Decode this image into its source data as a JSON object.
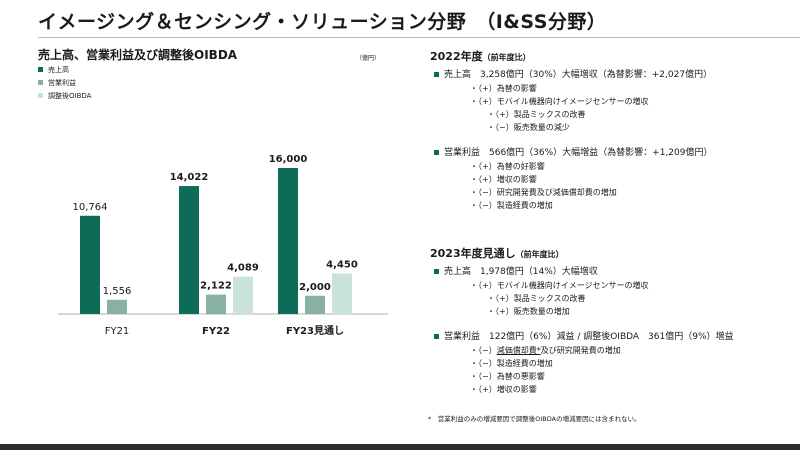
{
  "slide": {
    "title": "イメージング＆センシング・ソリューション分野　（I&SS分野）",
    "footnote": "*　営業利益のみの増減要因で調整後OIBDAの増減要因には含まれない。"
  },
  "colors": {
    "sales": "#0d6b57",
    "op_income": "#88b0a5",
    "oibda": "#c9e2dc",
    "bullet": "#0d6b57"
  },
  "chart_data": {
    "type": "bar",
    "title": "売上高、営業利益及び調整後OIBDA",
    "unit": "（億円）",
    "categories": [
      "FY21",
      "FY22",
      "FY23見通し"
    ],
    "categories_bold": [
      false,
      true,
      true
    ],
    "series": [
      {
        "name": "売上高",
        "values": [
          10764,
          14022,
          16000
        ],
        "labels": [
          "10,764",
          "14,022",
          "16,000"
        ],
        "label_bold": [
          false,
          true,
          true
        ]
      },
      {
        "name": "営業利益",
        "values": [
          1556,
          2122,
          2000
        ],
        "labels": [
          "1,556",
          "2,122",
          "2,000"
        ],
        "label_bold": [
          false,
          true,
          true
        ]
      },
      {
        "name": "調整後OIBDA",
        "values": [
          null,
          4089,
          4450
        ],
        "labels": [
          "",
          "4,089",
          "4,450"
        ],
        "label_bold": [
          false,
          true,
          true
        ]
      }
    ],
    "ylim": [
      0,
      18000
    ],
    "grid": false,
    "legend": "top-left"
  },
  "panel2022": {
    "heading": "2022年度",
    "heading_note": "（前年度比）",
    "sales": "売上高　3,258億円（30%）大幅増収（為替影響：+2,027億円）",
    "sales_items": [
      "・（+）為替の影響",
      "・（+）モバイル機器向けイメージセンサーの増収"
    ],
    "sales_subitems": [
      "・（+）製品ミックスの改善",
      "・（−）販売数量の減少"
    ],
    "op": "営業利益　566億円（36%）大幅増益（為替影響：+1,209億円）",
    "op_items": [
      "・（+）為替の好影響",
      "・（+）増収の影響",
      "・（−）研究開発費及び減価償却費の増加",
      "・（−）製造経費の増加"
    ]
  },
  "panel2023": {
    "heading": "2023年度見通し",
    "heading_note": "（前年度比）",
    "sales": "売上高　1,978億円（14%）大幅増収",
    "sales_items": [
      "・（+）モバイル機器向けイメージセンサーの増収"
    ],
    "sales_subitems": [
      "・（+）製品ミックスの改善",
      "・（+）販売数量の増加"
    ],
    "op": "営業利益　122億円（6%）減益 / 調整後OIBDA　361億円（9%）増益",
    "op_item0_prefix": "・（−）",
    "op_item0_underline": "減価償却費*",
    "op_item0_suffix": "及び研究開発費の増加",
    "op_items": [
      "・（−）製造経費の増加",
      "・（−）為替の悪影響",
      "・（+）増収の影響"
    ]
  }
}
